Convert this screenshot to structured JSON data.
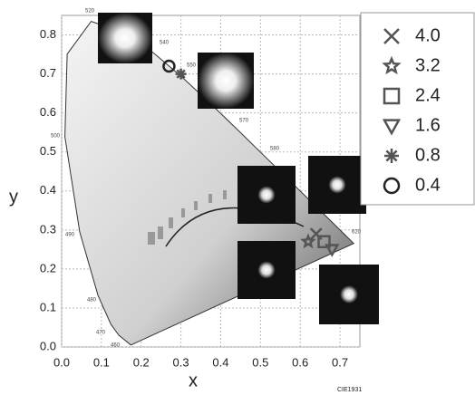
{
  "chart_data": {
    "type": "scatter",
    "x_label": "x",
    "y_label": "y",
    "footnote": "CIE1931",
    "xlim": [
      0,
      0.75
    ],
    "ylim": [
      0,
      0.85
    ],
    "xticks": [
      {
        "value": 0,
        "label": "0.0"
      },
      0.1,
      0.2,
      0.3,
      0.4,
      0.5,
      0.6,
      0.7
    ],
    "yticks": [
      {
        "value": 0,
        "label": "0.0"
      },
      0.1,
      0.2,
      0.3,
      0.4,
      0.5,
      0.6,
      0.7,
      0.8
    ],
    "grid": true,
    "wavelength_labels": [
      "520",
      "540",
      "550",
      "570",
      "580",
      "500",
      "490",
      "480",
      "470",
      "460",
      "620"
    ],
    "series": [
      {
        "name": "4.0",
        "marker": "x",
        "color": "#555555",
        "x": [
          0.64
        ],
        "values": [
          0.29
        ]
      },
      {
        "name": "3.2",
        "marker": "star",
        "color": "#555555",
        "x": [
          0.62
        ],
        "values": [
          0.27
        ]
      },
      {
        "name": "2.4",
        "marker": "square",
        "color": "#555555",
        "x": [
          0.66
        ],
        "values": [
          0.27
        ]
      },
      {
        "name": "1.6",
        "marker": "triangle",
        "color": "#555555",
        "x": [
          0.68
        ],
        "values": [
          0.25
        ]
      },
      {
        "name": "0.8",
        "marker": "asterisk",
        "color": "#555555",
        "x": [
          0.3
        ],
        "values": [
          0.7
        ]
      },
      {
        "name": "0.4",
        "marker": "circle",
        "color": "#222222",
        "x": [
          0.27
        ],
        "values": [
          0.72
        ]
      }
    ]
  }
}
